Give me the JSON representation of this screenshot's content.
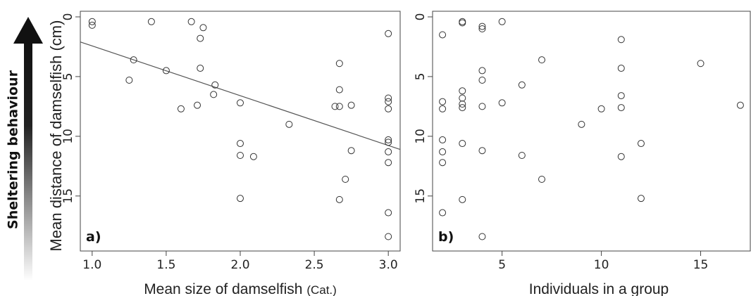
{
  "arrow": {
    "label": "Sheltering behaviour",
    "color_top": "#111111",
    "color_bottom": "#ffffff"
  },
  "y_axis": {
    "label": "Mean distance of damselfish (cm)"
  },
  "chart_data": [
    {
      "panel": "a)",
      "type": "scatter",
      "title": "",
      "xlabel_main": "Mean size of damselfish",
      "xlabel_unit": "(Cat.)",
      "ylabel": "Mean distance of damselfish (cm)",
      "xlim": [
        0.92,
        3.08
      ],
      "ylim": [
        0,
        18.9
      ],
      "y_reversed": true,
      "x_ticks": [
        "1.0",
        "1.5",
        "2.0",
        "2.5",
        "3.0"
      ],
      "x_tick_values": [
        1.0,
        1.5,
        2.0,
        2.5,
        3.0
      ],
      "y_ticks": [
        "0",
        "5",
        "10",
        "15"
      ],
      "y_tick_values": [
        0,
        5,
        10,
        15
      ],
      "grid": false,
      "regression_line": {
        "x": [
          0.92,
          3.08
        ],
        "y": [
          2.1,
          11.1
        ]
      },
      "points": [
        [
          1.0,
          0.4
        ],
        [
          1.0,
          0.7
        ],
        [
          1.4,
          0.4
        ],
        [
          1.67,
          0.4
        ],
        [
          1.75,
          0.9
        ],
        [
          1.73,
          1.8
        ],
        [
          1.28,
          3.6
        ],
        [
          1.5,
          4.5
        ],
        [
          1.73,
          4.3
        ],
        [
          1.25,
          5.3
        ],
        [
          1.83,
          5.7
        ],
        [
          1.82,
          6.5
        ],
        [
          1.71,
          7.4
        ],
        [
          1.6,
          7.7
        ],
        [
          2.0,
          7.2
        ],
        [
          2.33,
          9.0
        ],
        [
          2.0,
          10.6
        ],
        [
          2.0,
          11.6
        ],
        [
          2.09,
          11.7
        ],
        [
          2.0,
          15.2
        ],
        [
          2.67,
          3.9
        ],
        [
          2.67,
          6.1
        ],
        [
          2.64,
          7.5
        ],
        [
          2.67,
          7.5
        ],
        [
          2.75,
          7.4
        ],
        [
          2.75,
          11.2
        ],
        [
          2.71,
          13.6
        ],
        [
          2.67,
          15.3
        ],
        [
          3.0,
          1.4
        ],
        [
          3.0,
          6.8
        ],
        [
          3.0,
          7.1
        ],
        [
          3.0,
          7.7
        ],
        [
          3.0,
          10.3
        ],
        [
          3.0,
          10.5
        ],
        [
          3.0,
          11.3
        ],
        [
          3.0,
          12.2
        ],
        [
          3.0,
          16.4
        ],
        [
          3.0,
          18.4
        ]
      ]
    },
    {
      "panel": "b)",
      "type": "scatter",
      "title": "",
      "xlabel": "Individuals in a group",
      "ylabel": "Mean distance of damselfish (cm)",
      "xlim": [
        1.5,
        17.5
      ],
      "ylim": [
        0,
        18.9
      ],
      "y_reversed": true,
      "x_ticks": [
        "5",
        "10",
        "15"
      ],
      "x_tick_values": [
        5,
        10,
        15
      ],
      "y_ticks": [
        "0",
        "5",
        "10",
        "15"
      ],
      "y_tick_values": [
        0,
        5,
        10,
        15
      ],
      "grid": false,
      "points": [
        [
          2,
          1.5
        ],
        [
          2,
          7.1
        ],
        [
          2,
          7.7
        ],
        [
          2,
          10.3
        ],
        [
          2,
          11.3
        ],
        [
          2,
          12.2
        ],
        [
          2,
          16.4
        ],
        [
          3,
          0.4
        ],
        [
          3,
          0.5
        ],
        [
          3,
          6.2
        ],
        [
          3,
          6.8
        ],
        [
          3,
          7.3
        ],
        [
          3,
          7.6
        ],
        [
          3,
          10.6
        ],
        [
          3,
          15.3
        ],
        [
          4,
          0.8
        ],
        [
          4,
          1.0
        ],
        [
          4,
          4.5
        ],
        [
          4,
          5.3
        ],
        [
          4,
          7.5
        ],
        [
          4,
          11.2
        ],
        [
          4,
          18.4
        ],
        [
          5,
          0.4
        ],
        [
          5,
          7.2
        ],
        [
          6,
          5.7
        ],
        [
          6,
          11.6
        ],
        [
          7,
          3.6
        ],
        [
          7,
          13.6
        ],
        [
          9,
          9.0
        ],
        [
          10,
          7.7
        ],
        [
          11,
          1.9
        ],
        [
          11,
          4.3
        ],
        [
          11,
          6.6
        ],
        [
          11,
          7.6
        ],
        [
          11,
          11.7
        ],
        [
          12,
          10.6
        ],
        [
          12,
          15.2
        ],
        [
          15,
          3.9
        ],
        [
          17,
          7.4
        ]
      ]
    }
  ]
}
